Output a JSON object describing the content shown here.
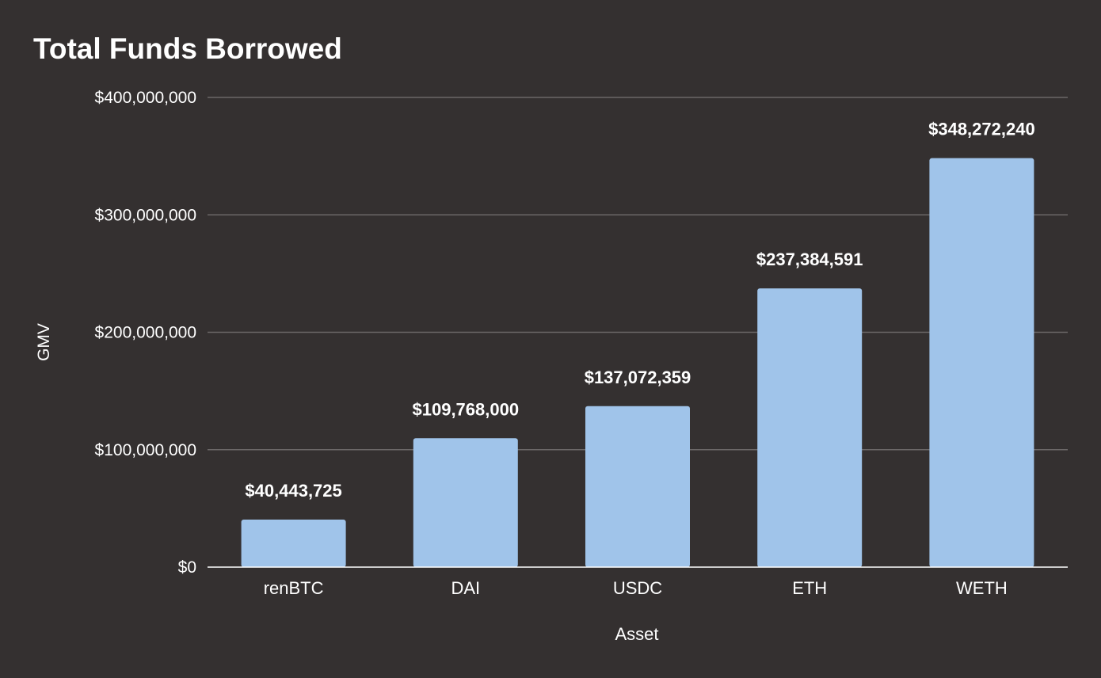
{
  "chart_data": {
    "type": "bar",
    "title": "Total Funds Borrowed",
    "xlabel": "Asset",
    "ylabel": "GMV",
    "categories": [
      "renBTC",
      "DAI",
      "USDC",
      "ETH",
      "WETH"
    ],
    "values": [
      40443725,
      109768000,
      137072359,
      237384591,
      348272240
    ],
    "value_labels": [
      "$40,443,725",
      "$109,768,000",
      "$137,072,359",
      "$237,384,591",
      "$348,272,240"
    ],
    "ylim": [
      0,
      400000000
    ],
    "yticks": [
      0,
      100000000,
      200000000,
      300000000,
      400000000
    ],
    "ytick_labels": [
      "$0",
      "$100,000,000",
      "$200,000,000",
      "$300,000,000",
      "$400,000,000"
    ],
    "grid": true,
    "legend": "none"
  },
  "colors": {
    "background": "#343030",
    "bar": "#a0c4ea",
    "grid": "#6b6767",
    "axis": "#ffffff",
    "text": "#ffffff"
  }
}
